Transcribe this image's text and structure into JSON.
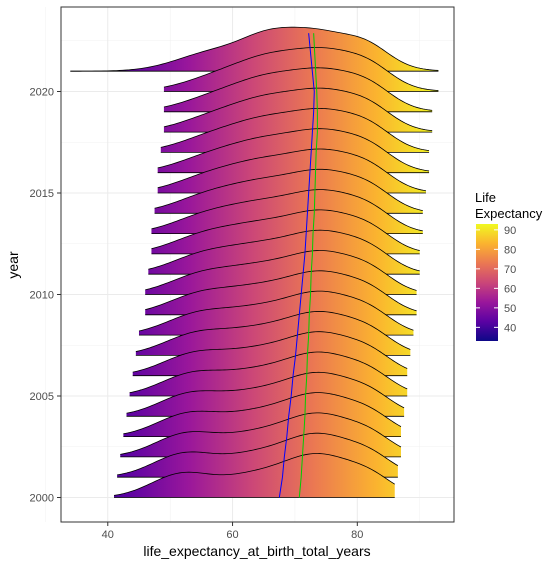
{
  "chart_data": {
    "type": "ridgeline",
    "xlabel": "life_expectancy_at_birth_total_years",
    "ylabel": "year",
    "xlim": [
      32.5,
      95.5
    ],
    "x_ticks": [
      40,
      60,
      80
    ],
    "y_ticks": [
      2000,
      2005,
      2010,
      2015,
      2020
    ],
    "years": [
      2000,
      2001,
      2002,
      2003,
      2004,
      2005,
      2006,
      2007,
      2008,
      2009,
      2010,
      2011,
      2012,
      2013,
      2014,
      2015,
      2016,
      2017,
      2018,
      2019,
      2020,
      2021
    ],
    "x_min": [
      41,
      41.5,
      42,
      42.5,
      43,
      43.5,
      44,
      44.5,
      45,
      46,
      46,
      46.5,
      47,
      47,
      47.5,
      48,
      48,
      48.5,
      49,
      49,
      49,
      34
    ],
    "x_max": [
      86,
      86.5,
      87,
      87,
      87.5,
      88,
      88,
      88.5,
      89,
      89.5,
      89.5,
      90,
      90,
      90.5,
      90.5,
      91,
      91.5,
      91.5,
      92,
      92,
      93,
      93
    ],
    "mean_line": [
      67.5,
      68,
      68.3,
      68.7,
      69,
      69.4,
      69.7,
      70.1,
      70.4,
      70.7,
      71,
      71.3,
      71.6,
      71.8,
      72,
      72.2,
      72.4,
      72.6,
      72.8,
      73,
      73.1,
      72.2
    ],
    "median_line": [
      70.7,
      71,
      71.2,
      71.4,
      71.6,
      71.7,
      71.9,
      72,
      72.2,
      72.3,
      72.5,
      72.6,
      72.8,
      72.9,
      73.1,
      73.2,
      73.3,
      73.4,
      73.6,
      73.6,
      73.5,
      73
    ],
    "grid": true,
    "legend": {
      "title_line1": "Life",
      "title_line2": "Expectancy",
      "ticks": [
        40,
        50,
        60,
        70,
        80,
        90
      ],
      "range": [
        33,
        93
      ],
      "placement": "right",
      "colors": [
        "#0d0887",
        "#5b02a3",
        "#9a179b",
        "#cb4678",
        "#eb7852",
        "#fbb32f",
        "#f0f921"
      ]
    },
    "mean_line_color": "#0000ff",
    "median_line_color": "#00cc00"
  }
}
